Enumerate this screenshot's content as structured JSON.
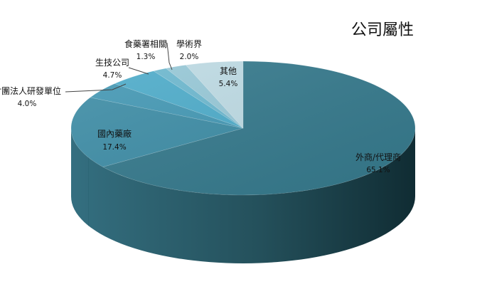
{
  "chart_data": {
    "type": "pie",
    "title": "公司屬性",
    "slices": [
      {
        "label": "外商/代理商",
        "value": 65.1,
        "value_label": "65.1%",
        "color": "#367A8D"
      },
      {
        "label": "國內藥廠",
        "value": 17.4,
        "value_label": "17.4%",
        "color": "#3F8EA7"
      },
      {
        "label": "財團法人研發單位",
        "value": 4.0,
        "value_label": "4.0%",
        "color": "#4599B5"
      },
      {
        "label": "生技公司",
        "value": 4.7,
        "value_label": "4.7%",
        "color": "#4FADCB"
      },
      {
        "label": "食藥署相關",
        "value": 1.3,
        "value_label": "1.3%",
        "color": "#6EB9D0"
      },
      {
        "label": "學術界",
        "value": 2.0,
        "value_label": "2.0%",
        "color": "#98C9D8"
      },
      {
        "label": "其他",
        "value": 5.4,
        "value_label": "5.4%",
        "color": "#BFDCE5"
      }
    ],
    "legend": "none",
    "style": "3d-pie"
  }
}
